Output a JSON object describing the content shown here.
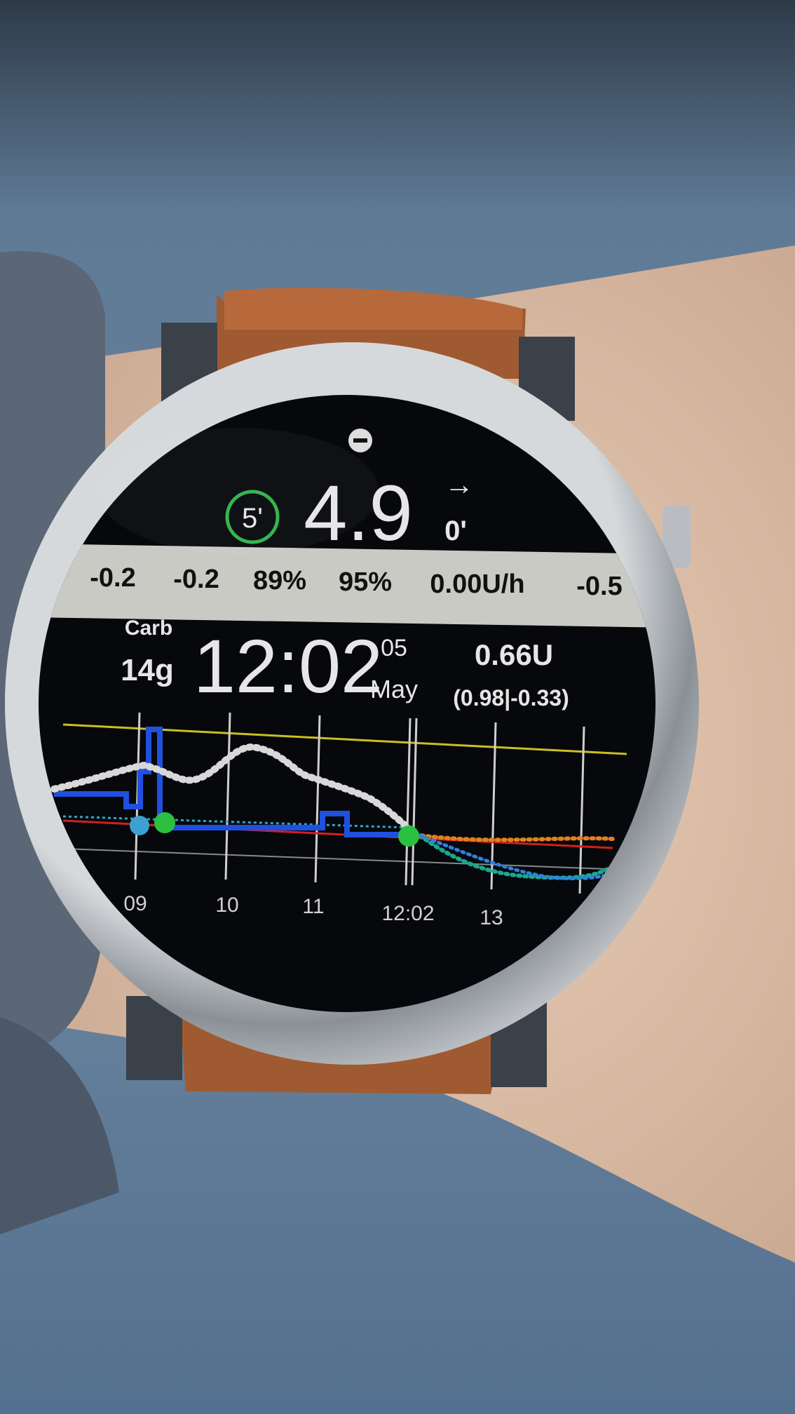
{
  "watch": {
    "sync_age": "5'",
    "glucose": "4.9",
    "trend_arrow": "→",
    "delta_age": "0'",
    "status_bar": [
      "-0.2",
      "-0.2",
      "89%",
      "95%",
      "0.00U/h",
      "-0.5"
    ],
    "carbs": {
      "label": "Carb",
      "value": "14g"
    },
    "time": "12:02",
    "date": {
      "day": "05",
      "month": "May"
    },
    "insulin": {
      "total": "0.66U",
      "detail": "(0.98|-0.33)"
    },
    "graph": {
      "x_labels": [
        "09",
        "10",
        "11",
        "12:02",
        "13"
      ]
    }
  }
}
